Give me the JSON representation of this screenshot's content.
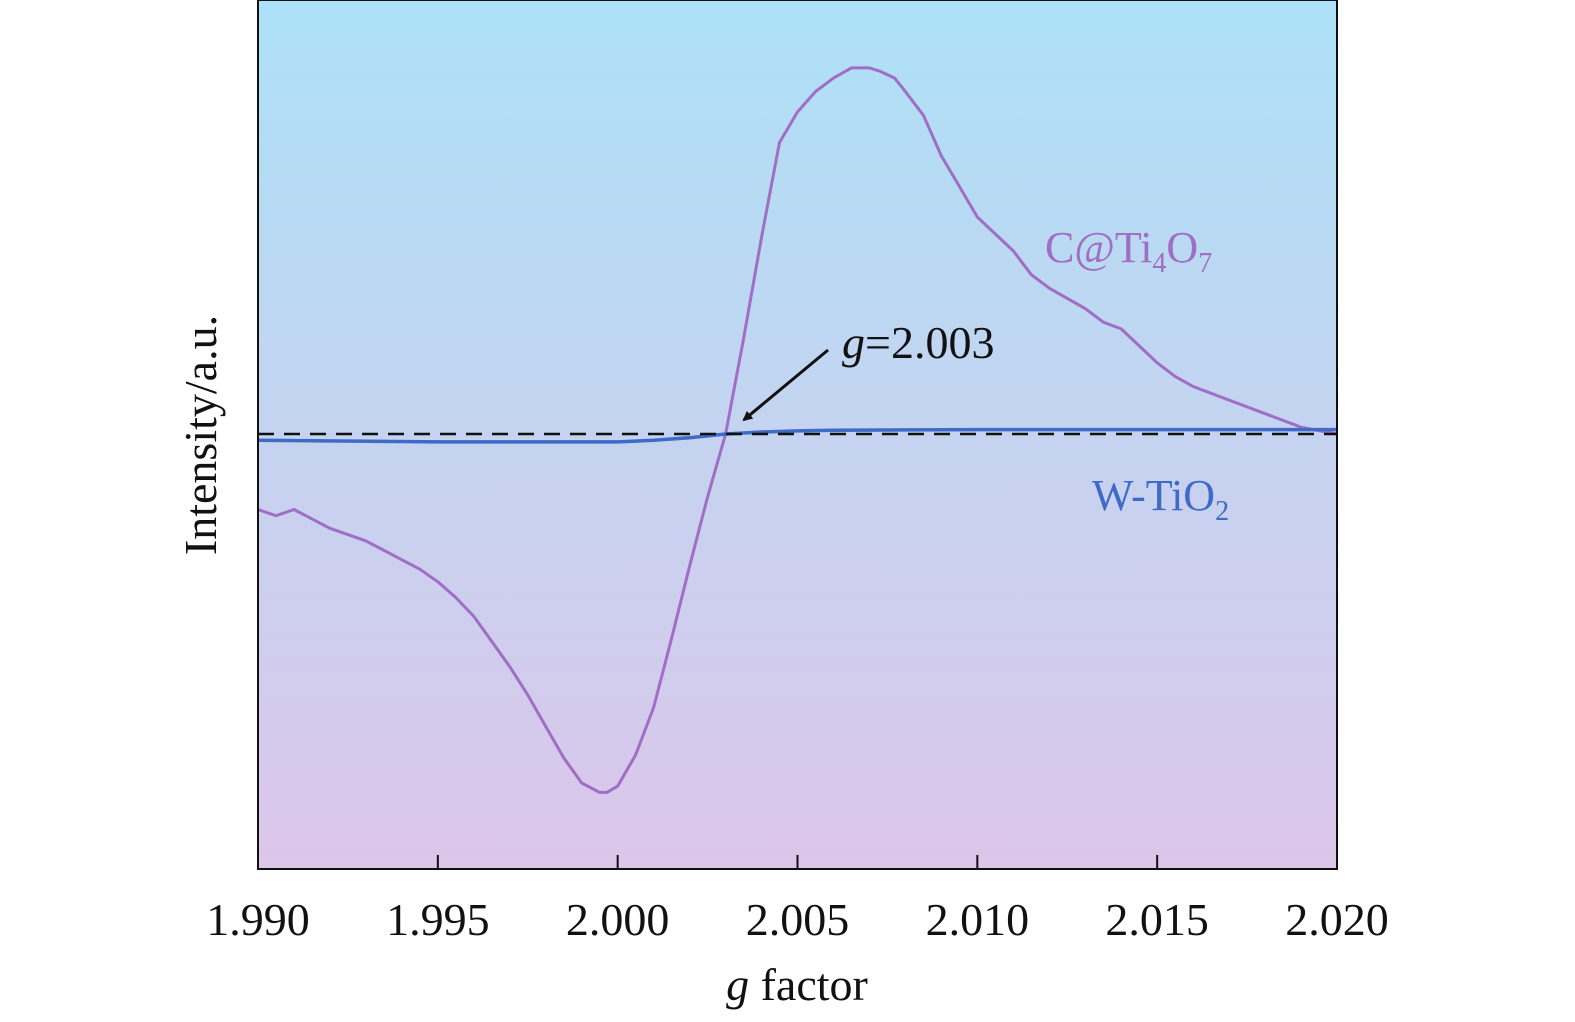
{
  "chart_data": {
    "type": "line",
    "title": "",
    "xlabel_italic": "g",
    "xlabel_rest": " factor",
    "ylabel": "Intensity/a.u.",
    "xlim": [
      1.99,
      2.02
    ],
    "ylim": [
      -1.18,
      1.0
    ],
    "x_ticks": [
      1.99,
      1.995,
      2.0,
      2.005,
      2.01,
      2.015,
      2.02
    ],
    "x_tick_labels": [
      "1.990",
      "1.995",
      "2.000",
      "2.005",
      "2.010",
      "2.015",
      "2.020"
    ],
    "y_ticks_shown": false,
    "grid": false,
    "background_gradient": [
      "#ade1f7",
      "#dcc6ea"
    ],
    "baseline": {
      "y": 0.0,
      "style": "dashed",
      "color": "#111111"
    },
    "series": [
      {
        "label_main": "C@Ti",
        "label_sub1": "4",
        "label_mid": "O",
        "label_sub2": "7",
        "color": "#a06ec5",
        "x": [
          1.99,
          1.9905,
          1.991,
          1.9915,
          1.992,
          1.9925,
          1.993,
          1.9935,
          1.994,
          1.9945,
          1.995,
          1.9955,
          1.996,
          1.9965,
          1.997,
          1.9975,
          1.998,
          1.9985,
          1.999,
          1.9995,
          1.9997,
          2.0,
          2.0005,
          2.001,
          2.0015,
          2.002,
          2.0025,
          2.003,
          2.0035,
          2.004,
          2.0045,
          2.005,
          2.0055,
          2.006,
          2.0065,
          2.007,
          2.0073,
          2.0077,
          2.008,
          2.0085,
          2.009,
          2.0095,
          2.01,
          2.0105,
          2.011,
          2.0115,
          2.012,
          2.0125,
          2.013,
          2.0135,
          2.014,
          2.0145,
          2.015,
          2.0155,
          2.016,
          2.0165,
          2.017,
          2.0175,
          2.018,
          2.0185,
          2.019,
          2.0195,
          2.02
        ],
        "y": [
          -0.24,
          -0.26,
          -0.24,
          -0.27,
          -0.3,
          -0.32,
          -0.34,
          -0.37,
          -0.4,
          -0.43,
          -0.47,
          -0.52,
          -0.58,
          -0.66,
          -0.74,
          -0.83,
          -0.93,
          -1.03,
          -1.11,
          -1.14,
          -1.14,
          -1.12,
          -1.02,
          -0.87,
          -0.65,
          -0.42,
          -0.2,
          0.0,
          0.28,
          0.58,
          0.86,
          0.95,
          1.01,
          1.05,
          1.08,
          1.08,
          1.07,
          1.05,
          1.01,
          0.94,
          0.82,
          0.73,
          0.64,
          0.59,
          0.54,
          0.47,
          0.43,
          0.4,
          0.37,
          0.33,
          0.31,
          0.26,
          0.21,
          0.17,
          0.14,
          0.12,
          0.1,
          0.08,
          0.06,
          0.04,
          0.02,
          0.01,
          0.0
        ]
      },
      {
        "label_main": "W-TiO",
        "label_sub1": "2",
        "label_mid": "",
        "label_sub2": "",
        "color": "#3f6ac6",
        "x": [
          1.99,
          1.995,
          1.998,
          2.0,
          2.001,
          2.002,
          2.003,
          2.004,
          2.005,
          2.006,
          2.008,
          2.01,
          2.015,
          2.02
        ],
        "y": [
          -0.02,
          -0.025,
          -0.025,
          -0.025,
          -0.02,
          -0.012,
          0.0,
          0.006,
          0.009,
          0.011,
          0.012,
          0.013,
          0.013,
          0.013
        ]
      }
    ],
    "annotation": {
      "text_italic": "g",
      "text_rest": "=2.003",
      "points_to_x": 2.0034,
      "points_to_y": 0.03,
      "text_x": 2.0052,
      "text_y": 0.3
    }
  }
}
